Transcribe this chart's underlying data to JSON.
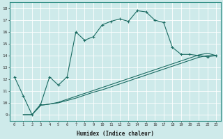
{
  "xlabel": "Humidex (Indice chaleur)",
  "xlim": [
    -0.5,
    23.5
  ],
  "ylim": [
    8.5,
    18.5
  ],
  "xticks": [
    0,
    1,
    2,
    3,
    4,
    5,
    6,
    7,
    8,
    9,
    10,
    11,
    12,
    13,
    14,
    15,
    16,
    17,
    18,
    19,
    20,
    21,
    22,
    23
  ],
  "yticks": [
    9,
    10,
    11,
    12,
    13,
    14,
    15,
    16,
    17,
    18
  ],
  "bg_color": "#ceeaea",
  "line_color": "#1a6b62",
  "grid_color": "#b8d8d8",
  "curve1_x": [
    0,
    1,
    2,
    3,
    4,
    5,
    6,
    7,
    8,
    9,
    10,
    11,
    12,
    13,
    14,
    15,
    16,
    17,
    18,
    19,
    20,
    21,
    22,
    23
  ],
  "curve1_y": [
    12.2,
    10.6,
    9.0,
    9.9,
    12.2,
    11.5,
    12.2,
    16.0,
    15.3,
    15.6,
    16.6,
    16.9,
    17.1,
    16.9,
    17.8,
    17.7,
    17.0,
    16.8,
    14.7,
    14.1,
    14.1,
    14.0,
    13.9,
    14.0
  ],
  "curve2_x": [
    1,
    2,
    3,
    4,
    5,
    6,
    7,
    8,
    9,
    10,
    11,
    12,
    13,
    14,
    15,
    16,
    17,
    18,
    19,
    20,
    21,
    22,
    23
  ],
  "curve2_y": [
    9.0,
    9.0,
    9.8,
    9.9,
    10.0,
    10.2,
    10.4,
    10.65,
    10.9,
    11.1,
    11.35,
    11.6,
    11.85,
    12.1,
    12.35,
    12.6,
    12.85,
    13.1,
    13.35,
    13.6,
    13.85,
    14.0,
    14.0
  ],
  "curve3_x": [
    1,
    2,
    3,
    4,
    5,
    6,
    7,
    8,
    9,
    10,
    11,
    12,
    13,
    14,
    15,
    16,
    17,
    18,
    19,
    20,
    21,
    22,
    23
  ],
  "curve3_y": [
    9.0,
    9.0,
    9.8,
    9.9,
    10.05,
    10.3,
    10.55,
    10.8,
    11.05,
    11.3,
    11.55,
    11.8,
    12.05,
    12.3,
    12.55,
    12.8,
    13.05,
    13.3,
    13.55,
    13.8,
    14.05,
    14.2,
    14.0
  ]
}
